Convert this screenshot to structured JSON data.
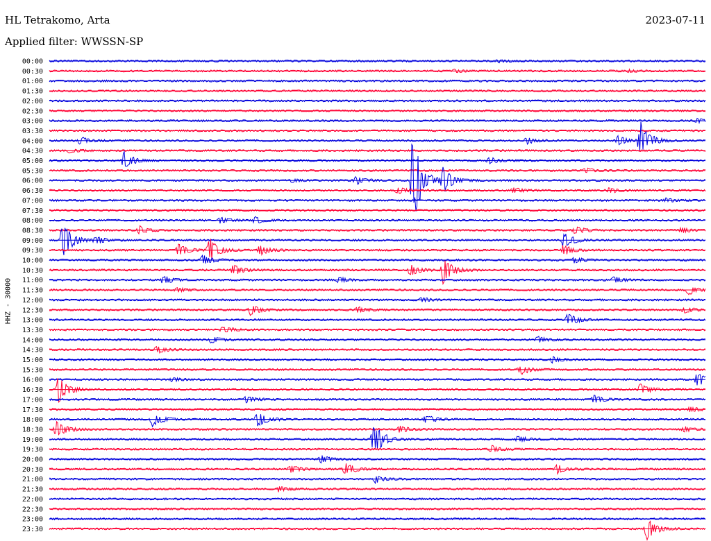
{
  "header": {
    "station": "HL Tetrakomo, Arta",
    "date": "2023-07-11",
    "filter": "Applied filter: WWSSN-SP",
    "channel_label": "HHZ - 30000"
  },
  "colors": {
    "odd": "#0000dd",
    "even": "#ff0033"
  },
  "chart_data": {
    "type": "line",
    "title": "HL Tetrakomo, Arta",
    "ylabel": "HHZ - 30000",
    "xlabel": "",
    "x_range_minutes": [
      0,
      30
    ],
    "rows": [
      "00:00",
      "00:30",
      "01:00",
      "01:30",
      "02:00",
      "02:30",
      "03:00",
      "03:30",
      "04:00",
      "04:30",
      "05:00",
      "05:30",
      "06:00",
      "06:30",
      "07:00",
      "07:30",
      "08:00",
      "08:30",
      "09:00",
      "09:30",
      "10:00",
      "10:30",
      "11:00",
      "11:30",
      "12:00",
      "12:30",
      "13:00",
      "13:30",
      "14:00",
      "14:30",
      "15:00",
      "15:30",
      "16:00",
      "16:30",
      "17:00",
      "17:30",
      "18:00",
      "18:30",
      "19:00",
      "19:30",
      "20:00",
      "20:30",
      "21:00",
      "21:30",
      "22:00",
      "22:30",
      "23:00",
      "23:30"
    ],
    "events": [
      {
        "row": "00:00",
        "minute": 20.5,
        "amp": 2
      },
      {
        "row": "00:30",
        "minute": 18.5,
        "amp": 2
      },
      {
        "row": "00:30",
        "minute": 26.5,
        "amp": 2
      },
      {
        "row": "03:00",
        "minute": 29.6,
        "amp": 3
      },
      {
        "row": "04:00",
        "minute": 1.4,
        "amp": 5
      },
      {
        "row": "04:00",
        "minute": 21.8,
        "amp": 5
      },
      {
        "row": "04:00",
        "minute": 26.0,
        "amp": 7
      },
      {
        "row": "04:00",
        "minute": 27.0,
        "amp": 30
      },
      {
        "row": "04:30",
        "minute": 0.9,
        "amp": 3
      },
      {
        "row": "05:00",
        "minute": 3.4,
        "amp": 14
      },
      {
        "row": "05:00",
        "minute": 20.1,
        "amp": 5
      },
      {
        "row": "05:30",
        "minute": 24.5,
        "amp": 4
      },
      {
        "row": "06:00",
        "minute": 11.1,
        "amp": 3
      },
      {
        "row": "06:00",
        "minute": 14.0,
        "amp": 6
      },
      {
        "row": "06:00",
        "minute": 16.6,
        "amp": 70
      },
      {
        "row": "06:00",
        "minute": 18.0,
        "amp": 20
      },
      {
        "row": "06:30",
        "minute": 15.9,
        "amp": 5
      },
      {
        "row": "06:30",
        "minute": 21.2,
        "amp": 4
      },
      {
        "row": "06:30",
        "minute": 25.6,
        "amp": 4
      },
      {
        "row": "07:00",
        "minute": 28.2,
        "amp": 3
      },
      {
        "row": "08:00",
        "minute": 7.8,
        "amp": 4
      },
      {
        "row": "08:00",
        "minute": 9.4,
        "amp": 5
      },
      {
        "row": "08:30",
        "minute": 4.1,
        "amp": 6
      },
      {
        "row": "08:30",
        "minute": 24.0,
        "amp": 6
      },
      {
        "row": "08:30",
        "minute": 28.9,
        "amp": 4
      },
      {
        "row": "09:00",
        "minute": 0.6,
        "amp": 28
      },
      {
        "row": "09:00",
        "minute": 2.1,
        "amp": 6
      },
      {
        "row": "09:00",
        "minute": 23.5,
        "amp": 12
      },
      {
        "row": "09:30",
        "minute": 5.9,
        "amp": 9
      },
      {
        "row": "09:30",
        "minute": 7.3,
        "amp": 20
      },
      {
        "row": "09:30",
        "minute": 9.6,
        "amp": 8
      },
      {
        "row": "09:30",
        "minute": 23.5,
        "amp": 8
      },
      {
        "row": "10:00",
        "minute": 7.0,
        "amp": 8
      },
      {
        "row": "10:00",
        "minute": 24.0,
        "amp": 4
      },
      {
        "row": "10:30",
        "minute": 8.4,
        "amp": 8
      },
      {
        "row": "10:30",
        "minute": 16.5,
        "amp": 8
      },
      {
        "row": "10:30",
        "minute": 18.0,
        "amp": 22
      },
      {
        "row": "11:00",
        "minute": 5.2,
        "amp": 6
      },
      {
        "row": "11:00",
        "minute": 13.2,
        "amp": 4
      },
      {
        "row": "11:00",
        "minute": 25.8,
        "amp": 5
      },
      {
        "row": "11:30",
        "minute": 5.8,
        "amp": 4
      },
      {
        "row": "11:30",
        "minute": 29.2,
        "amp": 8
      },
      {
        "row": "12:00",
        "minute": 17.0,
        "amp": 3
      },
      {
        "row": "12:30",
        "minute": 9.2,
        "amp": 8
      },
      {
        "row": "12:30",
        "minute": 14.1,
        "amp": 5
      },
      {
        "row": "12:30",
        "minute": 29.0,
        "amp": 5
      },
      {
        "row": "13:00",
        "minute": 23.7,
        "amp": 9
      },
      {
        "row": "13:30",
        "minute": 7.9,
        "amp": 5
      },
      {
        "row": "14:00",
        "minute": 7.4,
        "amp": 5
      },
      {
        "row": "14:00",
        "minute": 22.3,
        "amp": 5
      },
      {
        "row": "14:30",
        "minute": 4.9,
        "amp": 5
      },
      {
        "row": "15:00",
        "minute": 23.0,
        "amp": 4
      },
      {
        "row": "15:30",
        "minute": 21.5,
        "amp": 8
      },
      {
        "row": "16:00",
        "minute": 5.6,
        "amp": 3
      },
      {
        "row": "16:00",
        "minute": 29.6,
        "amp": 12
      },
      {
        "row": "16:30",
        "minute": 0.4,
        "amp": 20
      },
      {
        "row": "16:30",
        "minute": 27.0,
        "amp": 8
      },
      {
        "row": "17:00",
        "minute": 9.0,
        "amp": 5
      },
      {
        "row": "17:00",
        "minute": 24.9,
        "amp": 6
      },
      {
        "row": "17:30",
        "minute": 29.3,
        "amp": 4
      },
      {
        "row": "18:00",
        "minute": 4.7,
        "amp": 12
      },
      {
        "row": "18:00",
        "minute": 9.5,
        "amp": 12
      },
      {
        "row": "18:00",
        "minute": 17.2,
        "amp": 7
      },
      {
        "row": "18:30",
        "minute": 0.3,
        "amp": 14
      },
      {
        "row": "18:30",
        "minute": 16.0,
        "amp": 5
      },
      {
        "row": "18:30",
        "minute": 29.0,
        "amp": 4
      },
      {
        "row": "19:00",
        "minute": 14.8,
        "amp": 28
      },
      {
        "row": "19:00",
        "minute": 21.4,
        "amp": 5
      },
      {
        "row": "19:30",
        "minute": 20.2,
        "amp": 5
      },
      {
        "row": "20:00",
        "minute": 12.4,
        "amp": 6
      },
      {
        "row": "20:30",
        "minute": 11.0,
        "amp": 6
      },
      {
        "row": "20:30",
        "minute": 13.5,
        "amp": 10
      },
      {
        "row": "20:30",
        "minute": 23.2,
        "amp": 7
      },
      {
        "row": "21:00",
        "minute": 14.9,
        "amp": 5
      },
      {
        "row": "21:30",
        "minute": 10.5,
        "amp": 4
      },
      {
        "row": "23:30",
        "minute": 27.3,
        "amp": 18
      }
    ]
  }
}
